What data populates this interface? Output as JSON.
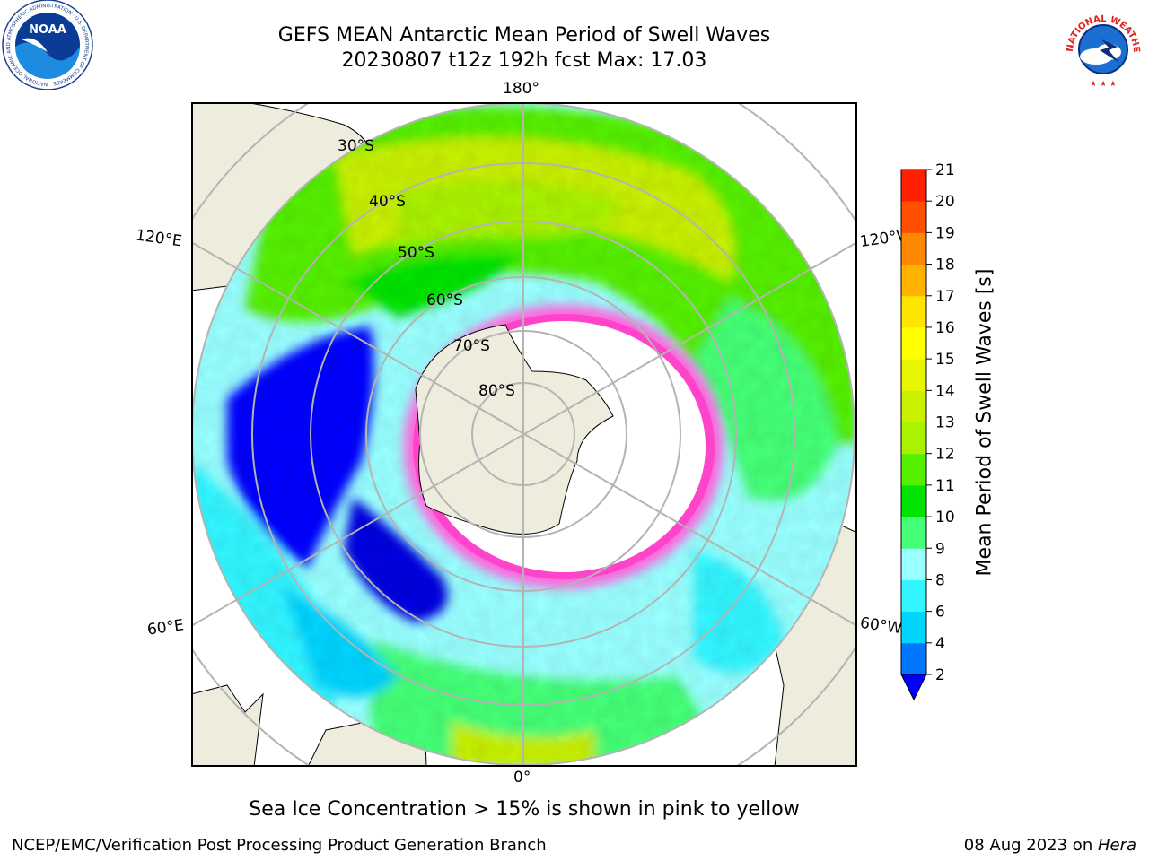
{
  "title": {
    "line1": "GEFS MEAN Antarctic Mean Period of Swell Waves",
    "line2": "20230807 t12z 192h fcst   Max: 17.03"
  },
  "longitude_labels": {
    "top": "180°",
    "bottom": "0°",
    "left_upper": "120°E",
    "right_upper": "120°W",
    "left_lower": "60°E",
    "right_lower": "60°W"
  },
  "latitude_labels": [
    "30°S",
    "40°S",
    "50°S",
    "60°S",
    "70°S",
    "80°S"
  ],
  "colorbar": {
    "label": "Mean Period of Swell Waves [s]",
    "ticks": [
      "2",
      "4",
      "6",
      "8",
      "9",
      "10",
      "11",
      "12",
      "13",
      "14",
      "15",
      "16",
      "17",
      "18",
      "19",
      "20",
      "21"
    ],
    "colors": [
      "#0077ff",
      "#00d4ff",
      "#33f5ff",
      "#99ffff",
      "#44ff77",
      "#00e400",
      "#55f000",
      "#aaf200",
      "#c8f000",
      "#e8f500",
      "#ffff00",
      "#ffe400",
      "#ffb200",
      "#ff8800",
      "#ff5000",
      "#ff2000"
    ],
    "extend_color": "#0000ff"
  },
  "caption": "Sea Ice Concentration > 15% is shown in pink to yellow",
  "footer": {
    "left": "NCEP/EMC/Verification Post Processing Product Generation Branch",
    "right_prefix": "08 Aug 2023 on ",
    "right_host": "Hera"
  },
  "logos": {
    "noaa": {
      "text": "NOAA",
      "ring_text": "NATIONAL OCEANIC AND ATMOSPHERIC ADMINISTRATION · U.S. DEPARTMENT OF COMMERCE"
    },
    "nws": {
      "ring_text": "NATIONAL WEATHER SERVICE"
    }
  }
}
